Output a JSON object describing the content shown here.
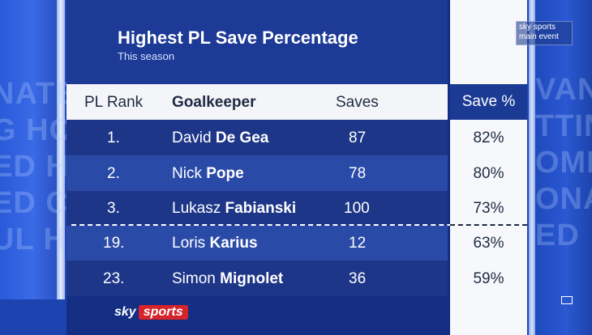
{
  "graphic": {
    "title": "Highest PL Save Percentage",
    "subtitle": "This season"
  },
  "columns": {
    "rank": "PL Rank",
    "keeper": "Goalkeeper",
    "saves": "Saves",
    "pct": "Save %"
  },
  "rows": [
    {
      "rank": "1.",
      "first": "David",
      "last": "De Gea",
      "saves": "87",
      "pct": "82%"
    },
    {
      "rank": "2.",
      "first": "Nick",
      "last": "Pope",
      "saves": "78",
      "pct": "80%"
    },
    {
      "rank": "3.",
      "first": "Lukasz",
      "last": "Fabianski",
      "saves": "100",
      "pct": "73%"
    },
    {
      "rank": "19.",
      "first": "Loris",
      "last": "Karius",
      "saves": "12",
      "pct": "63%"
    },
    {
      "rank": "23.",
      "first": "Simon",
      "last": "Mignolet",
      "saves": "36",
      "pct": "59%"
    }
  ],
  "branding": {
    "logo_sky": "sky",
    "logo_sports": "sports",
    "bug_line1": "sky sports",
    "bug_line2": "main event"
  },
  "colors": {
    "brand_red": "#d6242b",
    "panel_blue": "#142e84"
  }
}
